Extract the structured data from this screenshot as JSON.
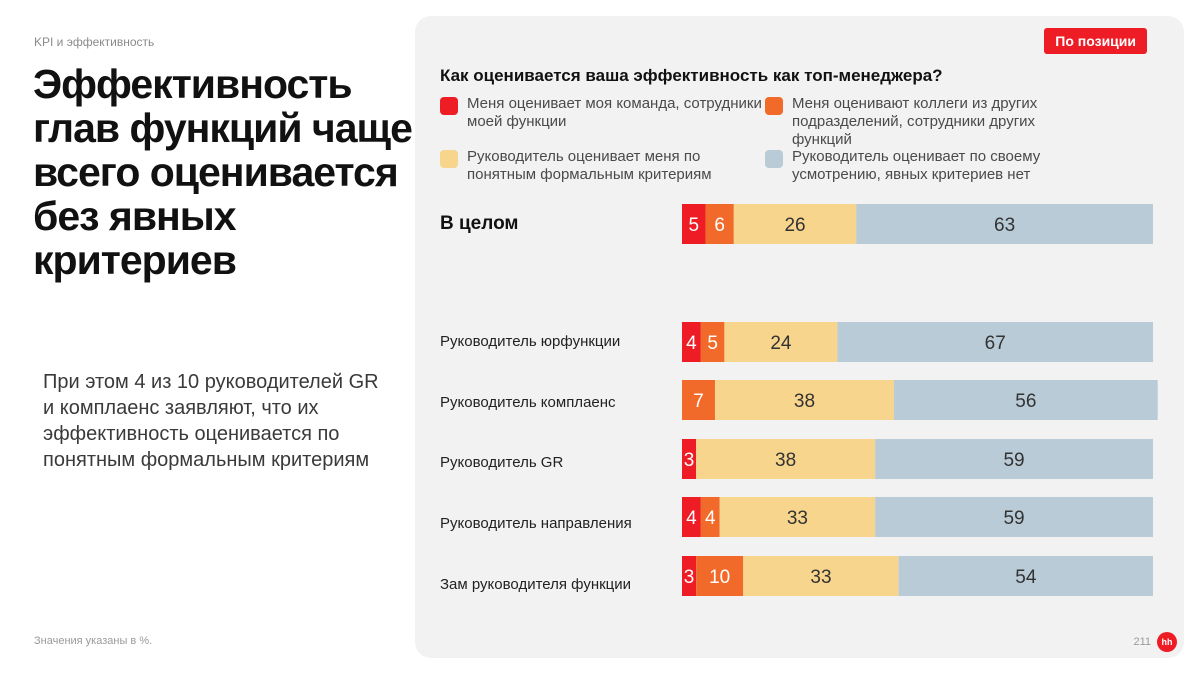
{
  "section_label": "KPI и эффективность",
  "headline": "Эффективность глав функций чаще всего оценивается без явных критериев",
  "subtext": "При этом 4 из 10 руководителей GR и комплаенс заявляют, что их эффективность оценивается по понятным формальным критериям",
  "footnote": "Значения указаны в %.",
  "page_number": "211",
  "logo_text": "hh",
  "position_badge": "По позиции",
  "chart_data": {
    "type": "bar",
    "orientation": "horizontal",
    "stacked": true,
    "title": "Как оценивается ваша эффективность как топ-менеджера?",
    "categories": [
      "В целом",
      "Руководитель юрфункции",
      "Руководитель комплаенс",
      "Руководитель GR",
      "Руководитель направления",
      "Зам руководителя функции"
    ],
    "series": [
      {
        "name": "Меня оценивает моя команда, сотрудники моей функции",
        "color": "#ee1c25",
        "values": [
          5,
          4,
          0,
          3,
          4,
          3
        ]
      },
      {
        "name": "Меня оценивают коллеги из других подразделений, сотрудники других функций",
        "color": "#f26a2a",
        "values": [
          6,
          5,
          7,
          0,
          4,
          10
        ]
      },
      {
        "name": "Руководитель оценивает меня по понятным формальным критериям",
        "color": "#f8d58c",
        "values": [
          26,
          24,
          38,
          38,
          33,
          33
        ]
      },
      {
        "name": "Руководитель оценивает по своему усмотрению, явных критериев нет",
        "color": "#b9cbd6",
        "values": [
          63,
          67,
          56,
          59,
          59,
          54
        ]
      }
    ],
    "xlim": [
      0,
      100
    ],
    "legend": "top",
    "grid": false
  }
}
